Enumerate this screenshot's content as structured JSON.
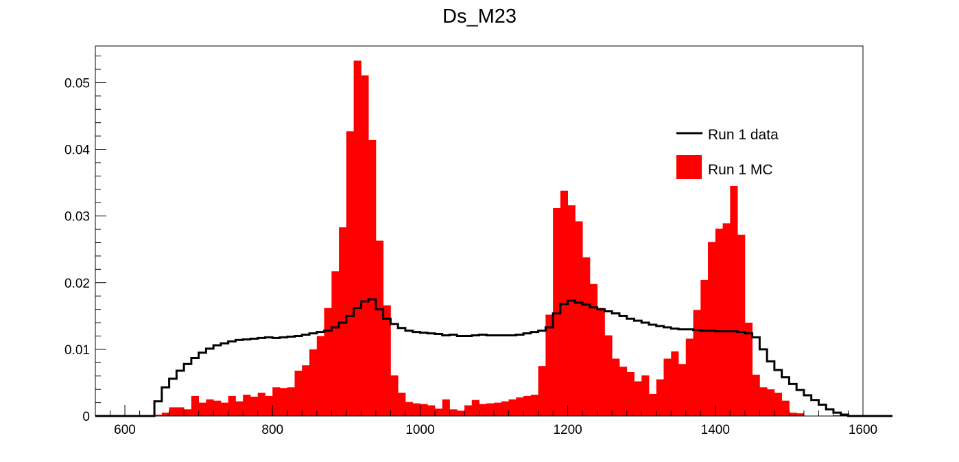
{
  "chart_data": {
    "type": "histogram",
    "title": "Ds_M23",
    "xlabel": "",
    "ylabel": "",
    "xlim": [
      560,
      1600
    ],
    "ylim": [
      0,
      0.0555
    ],
    "xticks": [
      600,
      800,
      1000,
      1200,
      1400,
      1600
    ],
    "yticks": [
      0,
      0.01,
      0.02,
      0.03,
      0.04,
      0.05
    ],
    "ytick_labels": [
      "0",
      "0.01",
      "0.02",
      "0.03",
      "0.04",
      "0.05"
    ],
    "bin_start": 560,
    "bin_width": 10,
    "grid": false,
    "legend_position": "top-right",
    "series": [
      {
        "name": "Run 1 data",
        "style": "line-step",
        "color": "#000000",
        "values": [
          0,
          0,
          0,
          0,
          0,
          0,
          0,
          0,
          0.0022,
          0.0043,
          0.0056,
          0.0068,
          0.0078,
          0.0087,
          0.0095,
          0.0101,
          0.0106,
          0.0109,
          0.0112,
          0.0114,
          0.0115,
          0.0116,
          0.0117,
          0.0118,
          0.0117,
          0.0118,
          0.0119,
          0.012,
          0.0122,
          0.0124,
          0.0126,
          0.0128,
          0.0133,
          0.014,
          0.015,
          0.0162,
          0.0172,
          0.0175,
          0.016,
          0.0146,
          0.0138,
          0.0132,
          0.0128,
          0.0126,
          0.0125,
          0.0124,
          0.0123,
          0.0121,
          0.0122,
          0.012,
          0.012,
          0.0121,
          0.0122,
          0.0121,
          0.0121,
          0.0121,
          0.0121,
          0.0122,
          0.0124,
          0.0126,
          0.0128,
          0.0133,
          0.0154,
          0.0168,
          0.0173,
          0.017,
          0.0167,
          0.0163,
          0.016,
          0.0157,
          0.0154,
          0.015,
          0.0146,
          0.0143,
          0.014,
          0.0137,
          0.0135,
          0.0133,
          0.0131,
          0.013,
          0.013,
          0.0129,
          0.0128,
          0.0128,
          0.0127,
          0.0127,
          0.0127,
          0.0126,
          0.0124,
          0.0118,
          0.01,
          0.0082,
          0.0069,
          0.0058,
          0.0048,
          0.0039,
          0.0031,
          0.0024,
          0.0017,
          0.001,
          0.0005,
          0.0002,
          0,
          0,
          0,
          0,
          0,
          0
        ]
      },
      {
        "name": "Run 1 MC",
        "style": "filled-bar",
        "color": "#ff0000",
        "values": [
          0,
          0,
          0,
          0,
          0,
          0,
          0,
          0,
          0.0002,
          0.0005,
          0.0013,
          0.0013,
          0.001,
          0.003,
          0.002,
          0.0025,
          0.0023,
          0.002,
          0.003,
          0.0022,
          0.0032,
          0.0029,
          0.0035,
          0.003,
          0.0043,
          0.0042,
          0.0043,
          0.0068,
          0.0076,
          0.01,
          0.012,
          0.0162,
          0.0217,
          0.0283,
          0.0427,
          0.0533,
          0.0511,
          0.0414,
          0.0263,
          0.0166,
          0.0061,
          0.0035,
          0.0021,
          0.0019,
          0.0018,
          0.0016,
          0.0011,
          0.0025,
          0.001,
          0.0008,
          0.0016,
          0.0024,
          0.0018,
          0.0019,
          0.002,
          0.0022,
          0.0025,
          0.0028,
          0.003,
          0.0032,
          0.0075,
          0.0152,
          0.0312,
          0.0338,
          0.0316,
          0.0292,
          0.0238,
          0.0198,
          0.0162,
          0.0121,
          0.0086,
          0.0074,
          0.0066,
          0.0052,
          0.0061,
          0.0033,
          0.0055,
          0.0086,
          0.0097,
          0.0078,
          0.0116,
          0.0159,
          0.0204,
          0.0261,
          0.0281,
          0.0289,
          0.0345,
          0.0272,
          0.014,
          0.0062,
          0.0043,
          0.004,
          0.0035,
          0.0023,
          0.0005,
          0.0004,
          0,
          0,
          0,
          0,
          0.0001,
          0,
          0,
          0,
          0,
          0,
          0,
          0
        ]
      }
    ]
  }
}
